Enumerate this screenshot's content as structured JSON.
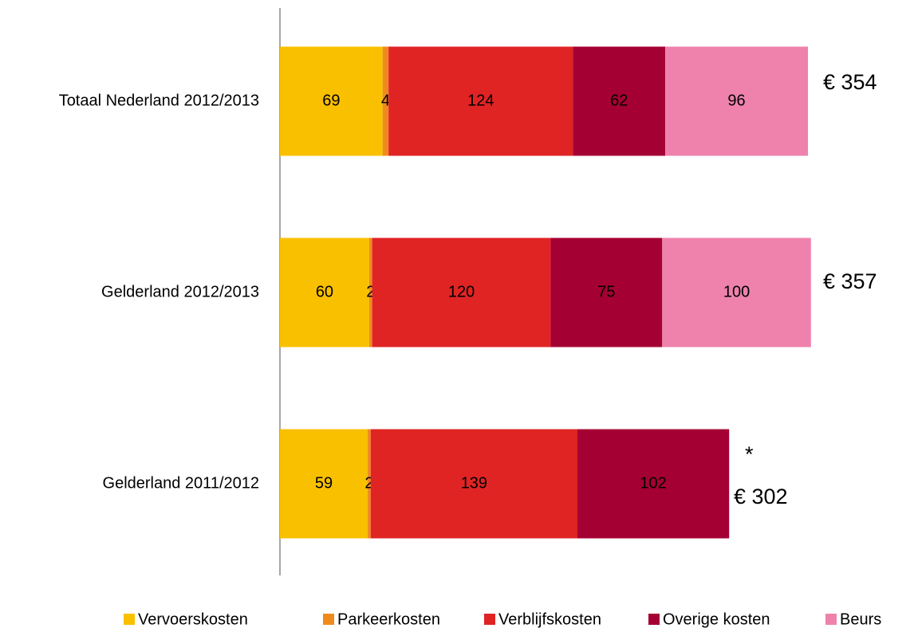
{
  "chart_data": {
    "type": "bar",
    "orientation": "horizontal",
    "stacked": true,
    "categories": [
      "Totaal Nederland 2012/2013",
      "Gelderland 2012/2013",
      "Gelderland 2011/2012"
    ],
    "series": [
      {
        "name": "Vervoerskosten",
        "color": "#f9c000",
        "values": [
          69,
          60,
          59
        ]
      },
      {
        "name": "Parkeerkosten",
        "color": "#f08a1c",
        "values": [
          4,
          2,
          2
        ]
      },
      {
        "name": "Verblijfskosten",
        "color": "#e02424",
        "values": [
          124,
          120,
          139
        ]
      },
      {
        "name": "Overige kosten",
        "color": "#a50034",
        "values": [
          62,
          75,
          102
        ]
      },
      {
        "name": "Beurs",
        "color": "#ee82ad",
        "values": [
          96,
          100,
          null
        ]
      }
    ],
    "totals": [
      "€ 354",
      "€ 357",
      "€ 302"
    ],
    "annotation": "*",
    "xlim": [
      0,
      400
    ],
    "legend": "bottom"
  }
}
